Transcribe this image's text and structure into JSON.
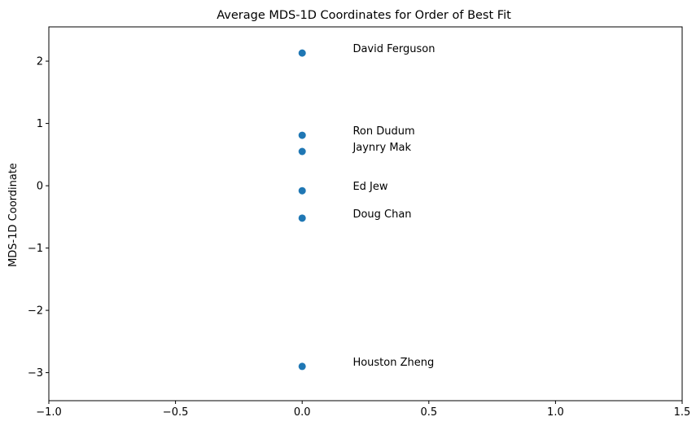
{
  "chart_data": {
    "type": "scatter",
    "title": "Average MDS-1D Coordinates for Order of Best Fit",
    "xlabel": "",
    "ylabel": "MDS-1D Coordinate",
    "xlim": [
      -1.0,
      1.5
    ],
    "ylim": [
      -3.45,
      2.55
    ],
    "xticks": [
      -1.0,
      -0.5,
      0.0,
      0.5,
      1.0,
      1.5
    ],
    "xtick_labels": [
      "−1.0",
      "−0.5",
      "0.0",
      "0.5",
      "1.0",
      "1.5"
    ],
    "yticks": [
      -3,
      -2,
      -1,
      0,
      1,
      2
    ],
    "ytick_labels": [
      "−3",
      "−2",
      "−1",
      "0",
      "1",
      "2"
    ],
    "grid": false,
    "marker_color": "#1f77b4",
    "label_offset_x": 0.2,
    "points": [
      {
        "label": "David Ferguson",
        "x": 0.0,
        "y": 2.13
      },
      {
        "label": "Ron Dudum",
        "x": 0.0,
        "y": 0.81
      },
      {
        "label": "Jaynry Mak",
        "x": 0.0,
        "y": 0.55
      },
      {
        "label": "Ed Jew",
        "x": 0.0,
        "y": -0.08
      },
      {
        "label": "Doug Chan",
        "x": 0.0,
        "y": -0.52
      },
      {
        "label": "Houston Zheng",
        "x": 0.0,
        "y": -2.9
      }
    ]
  }
}
